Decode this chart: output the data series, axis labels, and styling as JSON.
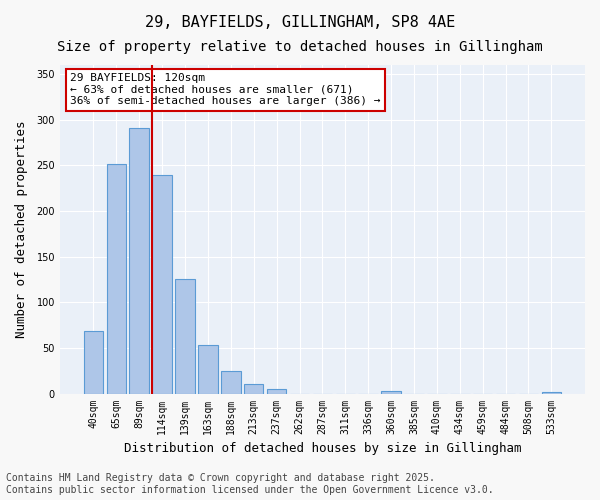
{
  "title1": "29, BAYFIELDS, GILLINGHAM, SP8 4AE",
  "title2": "Size of property relative to detached houses in Gillingham",
  "xlabel": "Distribution of detached houses by size in Gillingham",
  "ylabel": "Number of detached properties",
  "categories": [
    "40sqm",
    "65sqm",
    "89sqm",
    "114sqm",
    "139sqm",
    "163sqm",
    "188sqm",
    "213sqm",
    "237sqm",
    "262sqm",
    "287sqm",
    "311sqm",
    "336sqm",
    "360sqm",
    "385sqm",
    "410sqm",
    "434sqm",
    "459sqm",
    "484sqm",
    "508sqm",
    "533sqm"
  ],
  "values": [
    68,
    251,
    291,
    240,
    126,
    53,
    25,
    10,
    5,
    0,
    0,
    0,
    0,
    3,
    0,
    0,
    0,
    0,
    0,
    0,
    2
  ],
  "bar_color": "#aec6e8",
  "bar_edge_color": "#5b9bd5",
  "vline_x": 3,
  "vline_color": "#cc0000",
  "annotation_text": "29 BAYFIELDS: 120sqm\n← 63% of detached houses are smaller (671)\n36% of semi-detached houses are larger (386) →",
  "annotation_box_color": "#ffffff",
  "annotation_box_edge": "#cc0000",
  "ylim": [
    0,
    360
  ],
  "yticks": [
    0,
    50,
    100,
    150,
    200,
    250,
    300,
    350
  ],
  "bg_color": "#eaf0f8",
  "grid_color": "#ffffff",
  "footer": "Contains HM Land Registry data © Crown copyright and database right 2025.\nContains public sector information licensed under the Open Government Licence v3.0.",
  "title1_fontsize": 11,
  "title2_fontsize": 10,
  "xlabel_fontsize": 9,
  "ylabel_fontsize": 9,
  "tick_fontsize": 7,
  "annotation_fontsize": 8,
  "footer_fontsize": 7
}
